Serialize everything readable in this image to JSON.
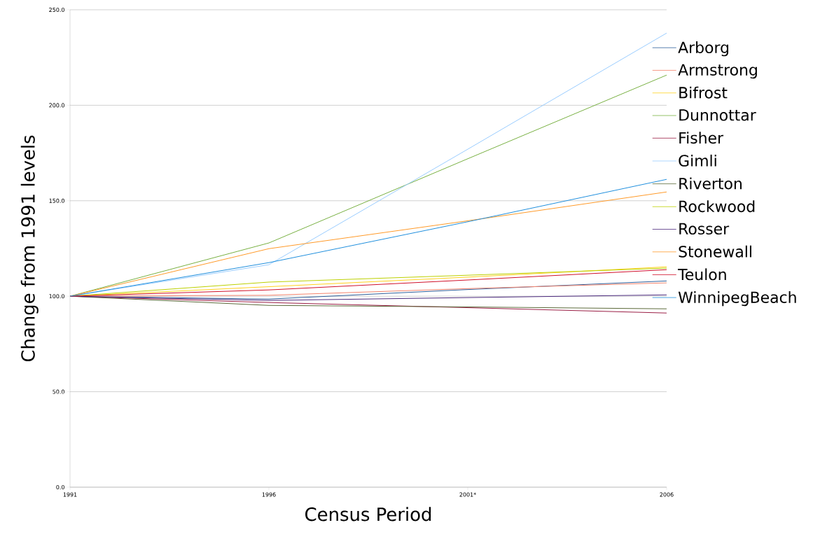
{
  "chart_data": {
    "type": "line",
    "xlabel": "Census Period",
    "ylabel": "Change from 1991 levels",
    "categories": [
      "1991",
      "1996",
      "2001*",
      "2006"
    ],
    "ylim": [
      0,
      250
    ],
    "yticks": [
      {
        "value": 0,
        "label": "0.0"
      },
      {
        "value": 50,
        "label": "50.0"
      },
      {
        "value": 100,
        "label": "100.0"
      },
      {
        "value": 150,
        "label": "150.0"
      },
      {
        "value": 200,
        "label": "200.0"
      },
      {
        "value": 250,
        "label": "250.0"
      }
    ],
    "grid": "y",
    "legend": "right",
    "marker": "none",
    "line_style": "solid",
    "series": [
      {
        "name": "Arborg",
        "color": "#2e5f9b",
        "values": [
          100,
          98.5,
          103.5,
          108
        ]
      },
      {
        "name": "Armstrong",
        "color": "#f4836b",
        "values": [
          100,
          100.5,
          104,
          107
        ]
      },
      {
        "name": "Bifrost",
        "color": "#ffd21e",
        "values": [
          100,
          105,
          110,
          115.4
        ]
      },
      {
        "name": "Dunnottar",
        "color": "#77b041",
        "values": [
          100,
          127.9,
          172,
          215.8
        ]
      },
      {
        "name": "Fisher",
        "color": "#9b1e45",
        "values": [
          100,
          96.7,
          94,
          91.2
        ]
      },
      {
        "name": "Gimli",
        "color": "#99ccff",
        "values": [
          100,
          116.5,
          177,
          237.8
        ]
      },
      {
        "name": "Riverton",
        "color": "#5b6a3a",
        "values": [
          100,
          95.2,
          94.4,
          93.4
        ]
      },
      {
        "name": "Rockwood",
        "color": "#bcd000",
        "values": [
          100,
          107.4,
          111,
          114.7
        ]
      },
      {
        "name": "Rosser",
        "color": "#4b2a7d",
        "values": [
          100,
          97.8,
          99.3,
          100.7
        ]
      },
      {
        "name": "Stonewall",
        "color": "#ff9a28",
        "values": [
          100,
          124.9,
          139.5,
          154.6
        ]
      },
      {
        "name": "Teulon",
        "color": "#d0102a",
        "values": [
          100,
          103.3,
          108.5,
          113.9
        ]
      },
      {
        "name": "WinnipegBeach",
        "color": "#1f8fdd",
        "values": [
          100,
          117.6,
          139,
          161.2
        ]
      }
    ]
  }
}
